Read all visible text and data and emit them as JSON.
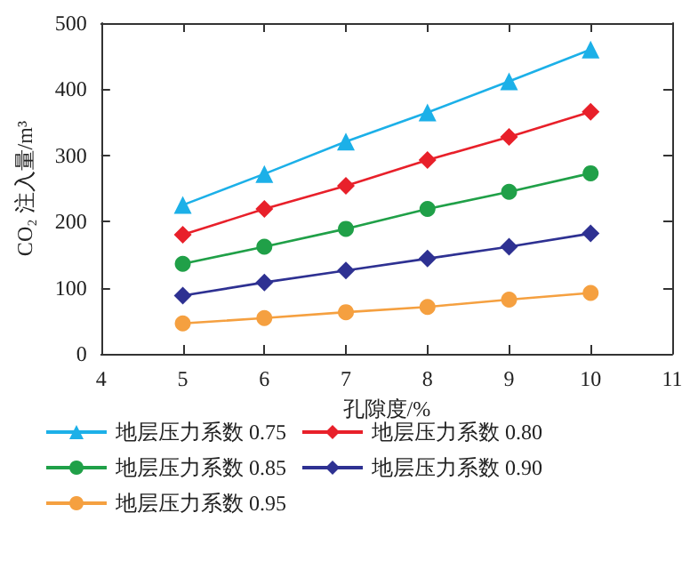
{
  "chart_data": {
    "type": "line",
    "xlabel": "孔隙度/%",
    "ylabel": "CO₂ 注入量/m³",
    "x": [
      5,
      6,
      7,
      8,
      9,
      10
    ],
    "xlim": [
      4,
      11
    ],
    "xticks": [
      4,
      5,
      6,
      7,
      8,
      9,
      10,
      11
    ],
    "ylim": [
      0,
      500
    ],
    "yticks": [
      0,
      100,
      200,
      300,
      400,
      500
    ],
    "grid": false,
    "legend": "bottom",
    "line_style": "solid",
    "series": [
      {
        "name": "地层压力系数 0.75",
        "color": "#1cb0e8",
        "marker": "triangle",
        "values": [
          225,
          272,
          321,
          365,
          412,
          460
        ]
      },
      {
        "name": "地层压力系数 0.80",
        "color": "#e8202a",
        "marker": "diamond",
        "values": [
          180,
          219,
          254,
          293,
          328,
          366
        ]
      },
      {
        "name": "地层压力系数 0.85",
        "color": "#20a048",
        "marker": "circle",
        "values": [
          136,
          162,
          189,
          219,
          245,
          273
        ]
      },
      {
        "name": "地层压力系数 0.90",
        "color": "#2e3192",
        "marker": "diamond",
        "values": [
          88,
          108,
          126,
          144,
          162,
          182
        ]
      },
      {
        "name": "地层压力系数 0.95",
        "color": "#f5a040",
        "marker": "circle",
        "values": [
          46,
          54,
          63,
          71,
          82,
          92
        ]
      }
    ]
  }
}
